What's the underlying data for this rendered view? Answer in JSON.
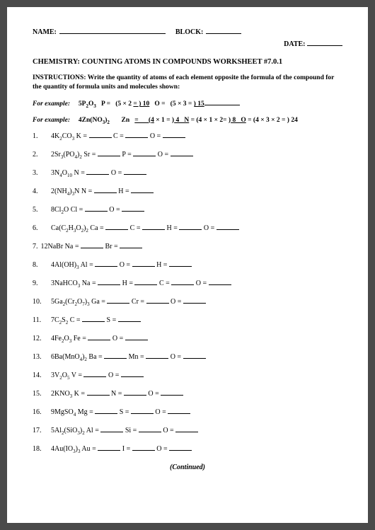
{
  "header": {
    "name_label": "NAME:",
    "block_label": "BLOCK:",
    "date_label": "DATE:"
  },
  "title": "CHEMISTRY: COUNTING ATOMS IN COMPOUNDS WORKSHEET #7.0.1",
  "instructions_label": "INSTRUCTIONS:",
  "instructions_text": "Write the quantity of atoms of each element opposite the formula of the compound for the quantity of formula units and molecules shown:",
  "example_label": "For example:",
  "example1": {
    "formula": "5P₂O₃",
    "work": "P =    (5 × 2 = ) 10    O =    (5 × 3 = ) 15"
  },
  "example2": {
    "formula": "4Zn(NO₃)₂",
    "work": "Zn    =       (4 × 1 = ) 4    N = (4 × 1 × 2= ) 8    O = (4 × 3 × 2 = ) 24"
  },
  "questions": [
    {
      "n": "1.",
      "f": "4K₂CO₃",
      "e": [
        "K",
        "C",
        "O"
      ]
    },
    {
      "n": "2.",
      "f": "2Sr₃(PO₄)₂",
      "e": [
        "Sr",
        "P",
        "O"
      ]
    },
    {
      "n": "3.",
      "f": "3N₄O₁₀",
      "e": [
        "N",
        "O"
      ]
    },
    {
      "n": "4.",
      "f": "2(NH₄)₃N",
      "e": [
        "N",
        "H"
      ]
    },
    {
      "n": "5.",
      "f": "8Cl₂O",
      "e": [
        "Cl",
        "O"
      ]
    },
    {
      "n": "6.",
      "f": "Ca(C₂H₃O₂)₂",
      "e": [
        "Ca",
        "C",
        "H",
        "O"
      ]
    },
    {
      "n": "7.",
      "f": "12NaBr",
      "e": [
        "Na",
        "Br"
      ],
      "inline": true
    },
    {
      "n": "8.",
      "f": "4Al(OH)₃",
      "e": [
        "Al",
        "O",
        "H"
      ]
    },
    {
      "n": "9.",
      "f": "3NaHCO₃",
      "e": [
        "Na",
        "H",
        "C",
        "O"
      ]
    },
    {
      "n": "10.",
      "f": "5Ga₂(Cr₂O₇)₃",
      "e": [
        "Ga",
        "Cr",
        "O"
      ]
    },
    {
      "n": "11.",
      "f": "7C₂S₂",
      "e": [
        "C",
        "S"
      ]
    },
    {
      "n": "12.",
      "f": "4Fe₂O₃",
      "e": [
        "Fe",
        "O"
      ]
    },
    {
      "n": "13.",
      "f": "6Ba(MnO₄)₂",
      "e": [
        "Ba",
        "Mn",
        "O"
      ]
    },
    {
      "n": "14.",
      "f": "3V₂O₅",
      "e": [
        "V",
        "O"
      ]
    },
    {
      "n": "15.",
      "f": "2KNO₃",
      "e": [
        "K",
        "N",
        "O"
      ]
    },
    {
      "n": "16.",
      "f": "9MgSO₄",
      "e": [
        "Mg",
        "S",
        "O"
      ]
    },
    {
      "n": "17.",
      "f": "5Al₂(SiO₃)₂",
      "e": [
        "Al",
        "Si",
        "O"
      ]
    },
    {
      "n": "18.",
      "f": "4Au(IO₃)₃",
      "e": [
        "Au",
        "I",
        "O"
      ]
    }
  ],
  "continued": "(Continued)",
  "colors": {
    "page_bg": "#ffffff",
    "outer_bg": "#4a4a4a",
    "text": "#000000"
  }
}
